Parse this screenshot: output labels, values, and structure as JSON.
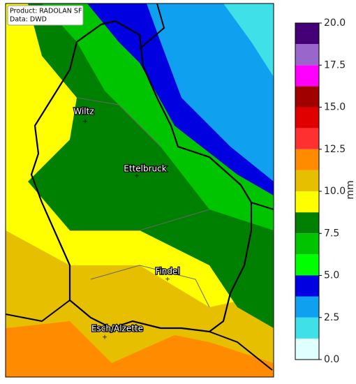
{
  "header": {
    "product": "Product: RADOLAN SF",
    "data": "Data: DWD"
  },
  "places": [
    {
      "label": "Wiltz"
    },
    {
      "label": "Ettelbruck"
    },
    {
      "label": "Findel"
    },
    {
      "label": "Esch/Alzette"
    }
  ],
  "colorbar": {
    "label": "mm",
    "lim": [
      0,
      20
    ],
    "ticks": [
      {
        "value": 0,
        "label": "0.0"
      },
      {
        "value": 2.5,
        "label": "2.5"
      },
      {
        "value": 5,
        "label": "5.0"
      },
      {
        "value": 7.5,
        "label": "7.5"
      },
      {
        "value": 10,
        "label": "10.0"
      },
      {
        "value": 12.5,
        "label": "12.5"
      },
      {
        "value": 15,
        "label": "15.0"
      },
      {
        "value": 17.5,
        "label": "17.5"
      },
      {
        "value": 20,
        "label": "20.0"
      }
    ],
    "levels": [
      0,
      1.25,
      2.5,
      3.75,
      5,
      6.25,
      7.5,
      8.75,
      10,
      11.25,
      12.5,
      13.75,
      15,
      16.25,
      17.5,
      18.75,
      20
    ],
    "colors": [
      "#e0ffff",
      "#40e0e8",
      "#10a0f0",
      "#0000e0",
      "#00ff00",
      "#00c400",
      "#008000",
      "#ffff00",
      "#e6c000",
      "#ff8c00",
      "#ff3030",
      "#e00000",
      "#a00000",
      "#ff00ff",
      "#9966cc",
      "#440077"
    ]
  }
}
